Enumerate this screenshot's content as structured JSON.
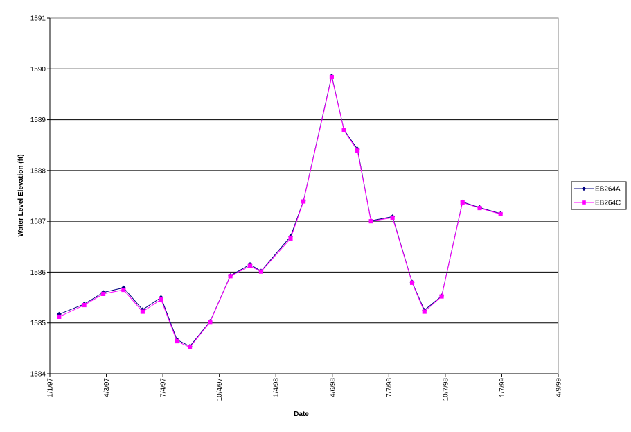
{
  "chart_data": {
    "type": "line",
    "title": "",
    "xlabel": "Date",
    "ylabel": "Water Level Elevation (ft)",
    "x_type": "date",
    "xlim": [
      "1997-01-01",
      "1999-04-09"
    ],
    "xticks": [
      {
        "date": "1997-01-01",
        "label": "1/1/97"
      },
      {
        "date": "1997-04-03",
        "label": "4/3/97"
      },
      {
        "date": "1997-07-04",
        "label": "7/4/97"
      },
      {
        "date": "1997-10-04",
        "label": "10/4/97"
      },
      {
        "date": "1998-01-04",
        "label": "1/4/98"
      },
      {
        "date": "1998-04-06",
        "label": "4/6/98"
      },
      {
        "date": "1998-07-07",
        "label": "7/7/98"
      },
      {
        "date": "1998-10-07",
        "label": "10/7/98"
      },
      {
        "date": "1999-01-07",
        "label": "1/7/99"
      },
      {
        "date": "1999-04-09",
        "label": "4/9/99"
      }
    ],
    "ylim": [
      1584,
      1591
    ],
    "yticks": [
      1584,
      1585,
      1586,
      1587,
      1588,
      1589,
      1590,
      1591
    ],
    "grid": "horizontal",
    "legend": "right",
    "series": [
      {
        "name": "EB264A",
        "color": "#000080",
        "marker": "diamond",
        "points": [
          [
            "1997-01-16",
            1585.17
          ],
          [
            "1997-02-26",
            1585.37
          ],
          [
            "1997-03-29",
            1585.6
          ],
          [
            "1997-05-01",
            1585.69
          ],
          [
            "1997-06-01",
            1585.26
          ],
          [
            "1997-07-01",
            1585.5
          ],
          [
            "1997-07-27",
            1584.67
          ],
          [
            "1997-08-17",
            1584.54
          ],
          [
            "1997-09-19",
            1585.03
          ],
          [
            "1997-10-22",
            1585.93
          ],
          [
            "1997-11-23",
            1586.15
          ],
          [
            "1997-12-11",
            1586.02
          ],
          [
            "1998-01-28",
            1586.7
          ],
          [
            "1998-02-18",
            1587.4
          ],
          [
            "1998-04-05",
            1589.86
          ],
          [
            "1998-04-25",
            1588.8
          ],
          [
            "1998-05-17",
            1588.42
          ],
          [
            "1998-06-08",
            1587.01
          ],
          [
            "1998-07-13",
            1587.09
          ],
          [
            "1998-08-14",
            1585.8
          ],
          [
            "1998-09-03",
            1585.25
          ],
          [
            "1998-10-01",
            1585.53
          ],
          [
            "1998-11-04",
            1587.38
          ],
          [
            "1998-12-02",
            1587.27
          ],
          [
            "1999-01-05",
            1587.15
          ]
        ]
      },
      {
        "name": "EB264C",
        "color": "#FF00FF",
        "marker": "square",
        "points": [
          [
            "1997-01-16",
            1585.12
          ],
          [
            "1997-02-26",
            1585.35
          ],
          [
            "1997-03-29",
            1585.57
          ],
          [
            "1997-05-01",
            1585.65
          ],
          [
            "1997-06-01",
            1585.22
          ],
          [
            "1997-07-01",
            1585.46
          ],
          [
            "1997-07-27",
            1584.64
          ],
          [
            "1997-08-17",
            1584.52
          ],
          [
            "1997-09-19",
            1585.02
          ],
          [
            "1997-10-22",
            1585.92
          ],
          [
            "1997-11-23",
            1586.12
          ],
          [
            "1997-12-11",
            1586.01
          ],
          [
            "1998-01-28",
            1586.66
          ],
          [
            "1998-02-18",
            1587.39
          ],
          [
            "1998-04-05",
            1589.84
          ],
          [
            "1998-04-25",
            1588.79
          ],
          [
            "1998-05-17",
            1588.39
          ],
          [
            "1998-06-08",
            1587.0
          ],
          [
            "1998-07-13",
            1587.07
          ],
          [
            "1998-08-14",
            1585.79
          ],
          [
            "1998-09-03",
            1585.22
          ],
          [
            "1998-10-01",
            1585.52
          ],
          [
            "1998-11-04",
            1587.37
          ],
          [
            "1998-12-02",
            1587.26
          ],
          [
            "1999-01-05",
            1587.14
          ]
        ]
      }
    ]
  }
}
